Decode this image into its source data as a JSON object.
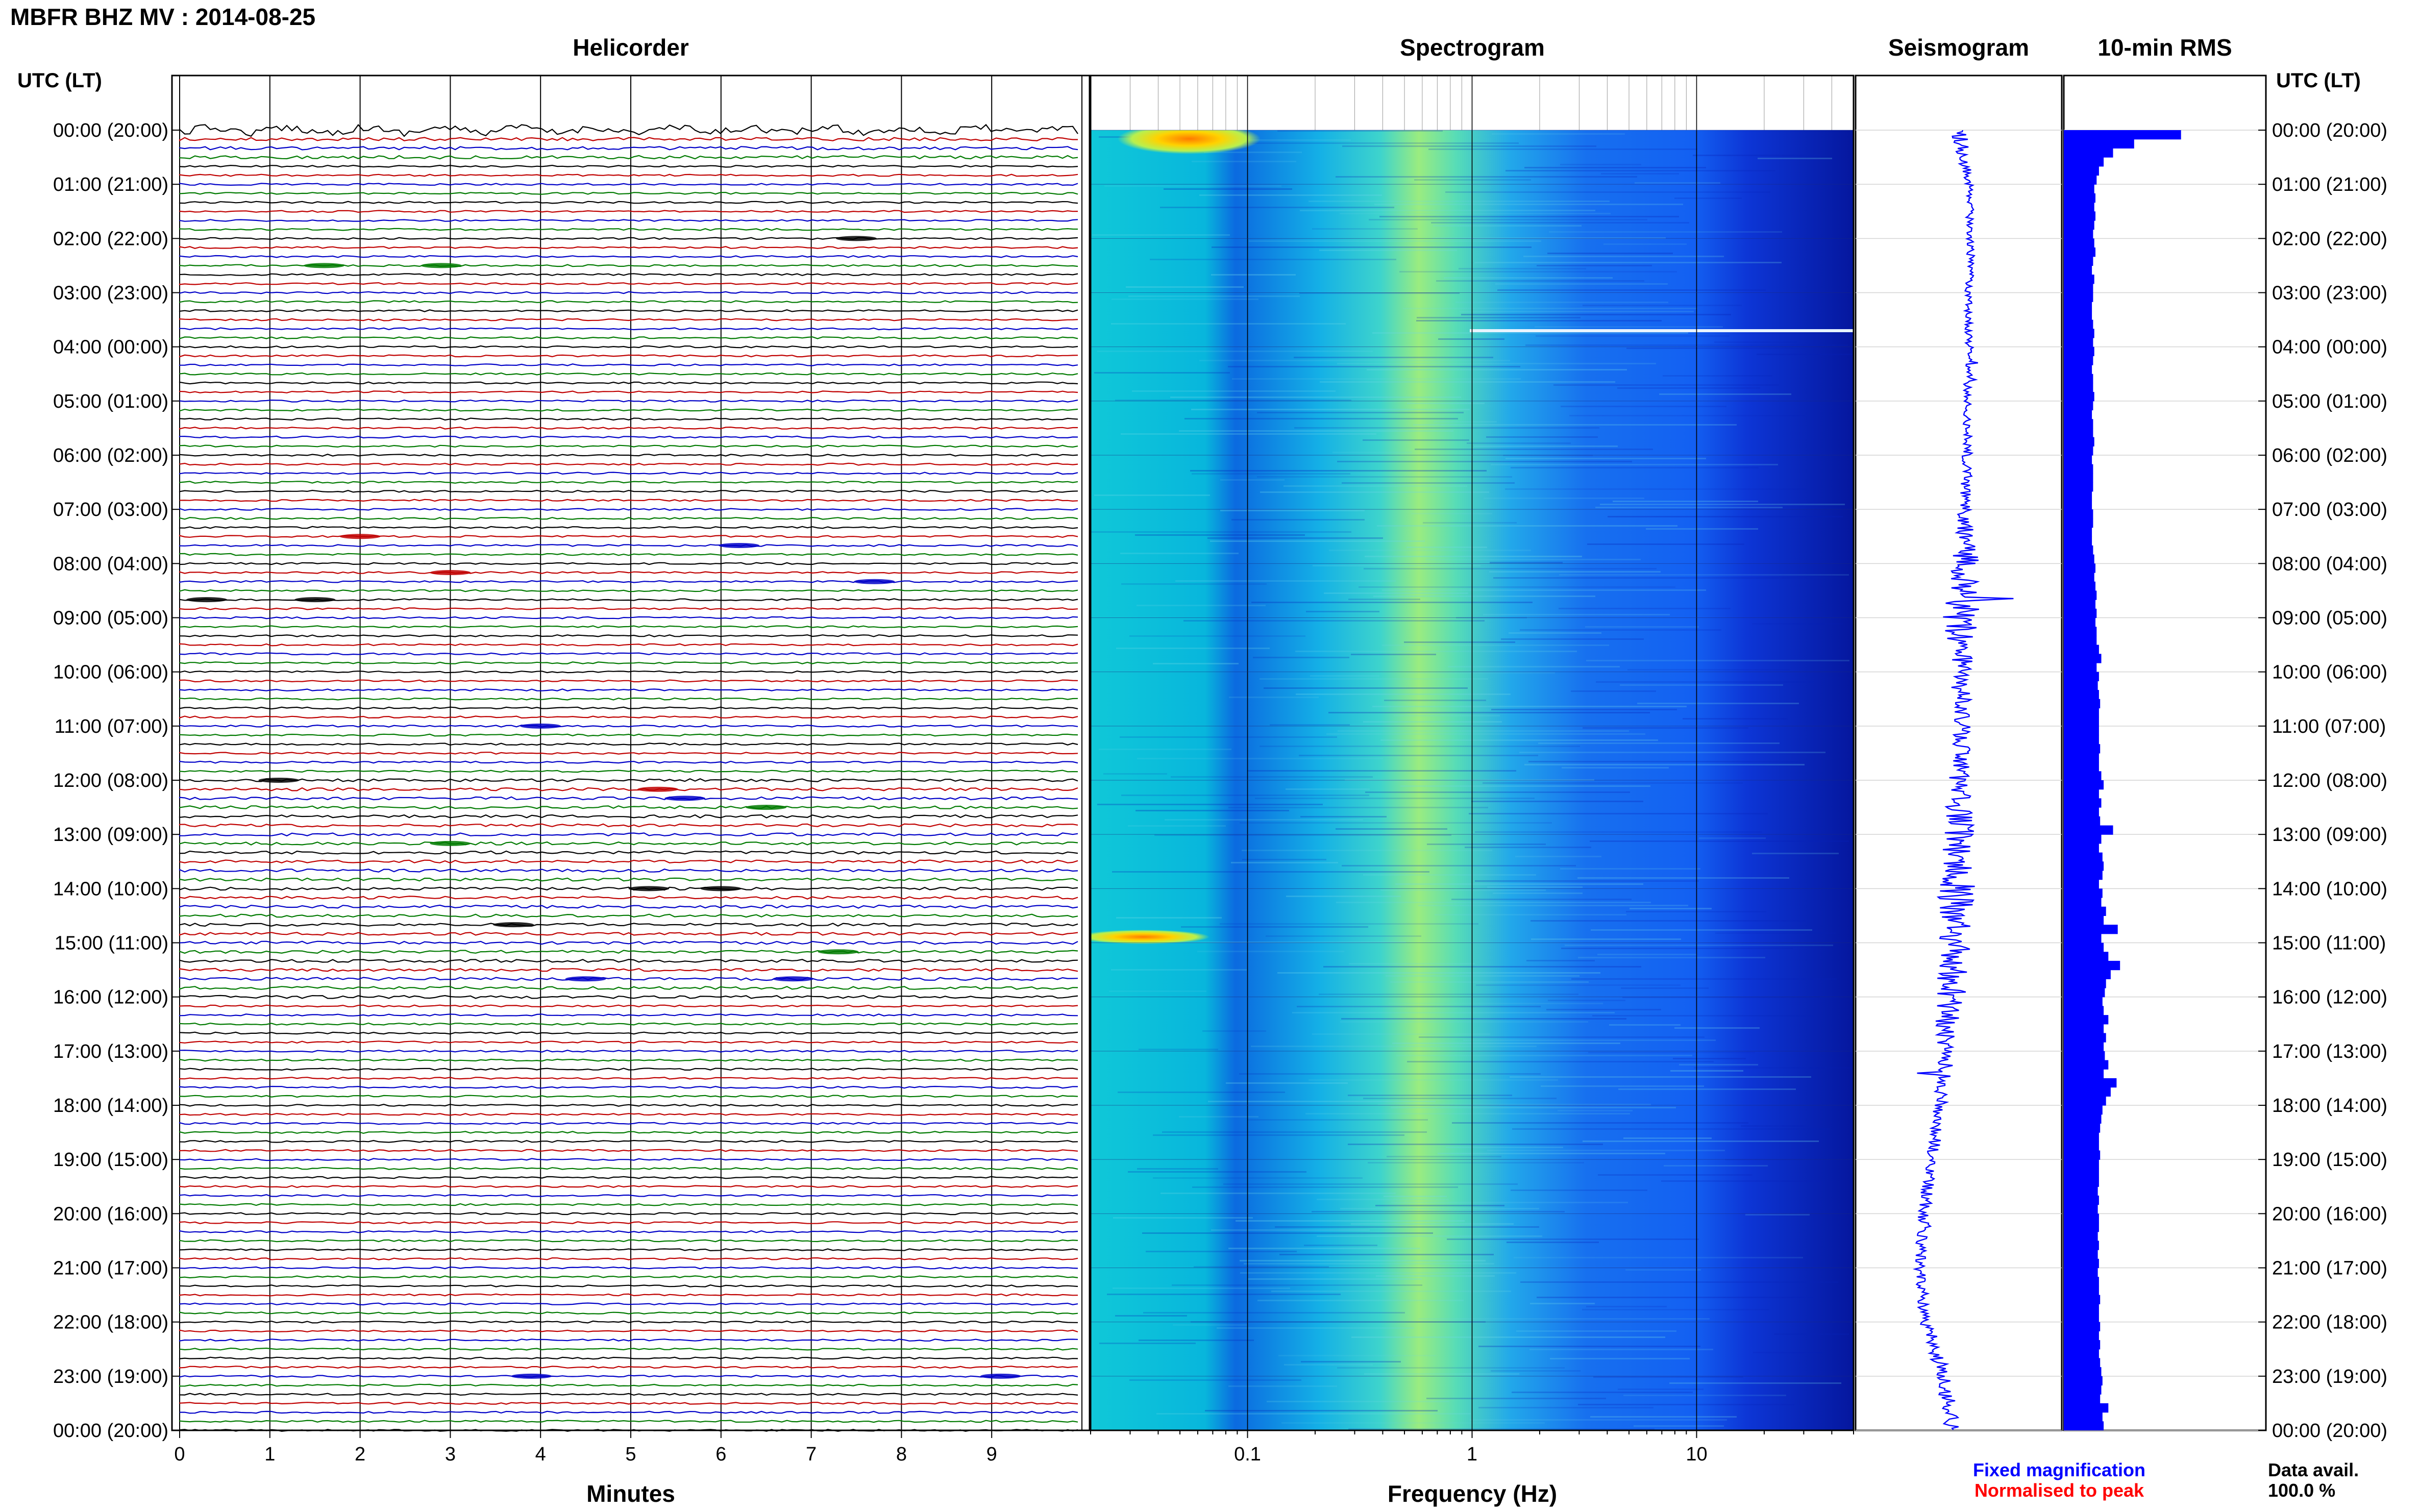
{
  "header": {
    "title": "MBFR BHZ MV : 2014-08-25",
    "helicorder_title": "Helicorder",
    "spectrogram_title": "Spectrogram",
    "seismogram_title": "Seismogram",
    "rms_title": "10-min RMS",
    "left_axis_label": "UTC (LT)",
    "right_axis_label": "UTC (LT)"
  },
  "footer": {
    "minutes_label": "Minutes",
    "frequency_label": "Frequency (Hz)",
    "legend_fixed": "Fixed magnification",
    "legend_normalised": "Normalised to peak",
    "data_avail_label": "Data avail.",
    "data_avail_value": "100.0 %"
  },
  "colors": {
    "helicorder_traces": [
      "#000000",
      "#c00000",
      "#0000c8",
      "#007a00"
    ],
    "fixed_magnification": "#0000ff",
    "normalised_to_peak": "#ff0000",
    "spectrogram_colormap": "jet",
    "seismogram": "#0000ff",
    "rms_bars": "#0000ff"
  },
  "chart_data": {
    "type": "heatmap",
    "time_ticks": [
      "00:00 (20:00)",
      "01:00 (21:00)",
      "02:00 (22:00)",
      "03:00 (23:00)",
      "04:00 (00:00)",
      "05:00 (01:00)",
      "06:00 (02:00)",
      "07:00 (03:00)",
      "08:00 (04:00)",
      "09:00 (05:00)",
      "10:00 (06:00)",
      "11:00 (07:00)",
      "12:00 (08:00)",
      "13:00 (09:00)",
      "14:00 (10:00)",
      "15:00 (11:00)",
      "16:00 (12:00)",
      "17:00 (13:00)",
      "18:00 (14:00)",
      "19:00 (15:00)",
      "20:00 (16:00)",
      "21:00 (17:00)",
      "22:00 (18:00)",
      "23:00 (19:00)",
      "00:00 (20:00)"
    ],
    "helicorder": {
      "x_ticks": [
        "0",
        "1",
        "2",
        "3",
        "4",
        "5",
        "6",
        "7",
        "8",
        "9"
      ],
      "xlim": [
        0,
        10
      ],
      "lines_per_hour": 6,
      "events": [
        {
          "line": 12,
          "minute": 7.5
        },
        {
          "line": 15,
          "minute": 1.6
        },
        {
          "line": 15,
          "minute": 2.9
        },
        {
          "line": 45,
          "minute": 2.0
        },
        {
          "line": 46,
          "minute": 6.2
        },
        {
          "line": 49,
          "minute": 3.0
        },
        {
          "line": 50,
          "minute": 7.7
        },
        {
          "line": 52,
          "minute": 0.3
        },
        {
          "line": 52,
          "minute": 1.5
        },
        {
          "line": 66,
          "minute": 4.0
        },
        {
          "line": 72,
          "minute": 1.1
        },
        {
          "line": 73,
          "minute": 5.3
        },
        {
          "line": 74,
          "minute": 5.6
        },
        {
          "line": 75,
          "minute": 6.5
        },
        {
          "line": 79,
          "minute": 3.0
        },
        {
          "line": 84,
          "minute": 5.2
        },
        {
          "line": 84,
          "minute": 6.0
        },
        {
          "line": 88,
          "minute": 3.7
        },
        {
          "line": 91,
          "minute": 7.3
        },
        {
          "line": 94,
          "minute": 4.5
        },
        {
          "line": 94,
          "minute": 6.8
        },
        {
          "line": 138,
          "minute": 3.9
        },
        {
          "line": 138,
          "minute": 9.1
        }
      ]
    },
    "spectrogram": {
      "x_scale": "log",
      "xlim": [
        0.02,
        50
      ],
      "x_ticks": [
        "0.1",
        "1",
        "10"
      ],
      "x_tick_values": [
        0.1,
        1,
        10
      ],
      "colormap": "jet",
      "notes": [
        "band of peak energy near 0.3-0.5 Hz",
        "strong low-frequency energy at 00:00 and 15:00"
      ]
    },
    "seismogram": {
      "normalised": true,
      "drift": [
        0.5,
        0.55,
        0.56,
        0.55,
        0.55,
        0.54,
        0.54,
        0.53,
        0.53,
        0.52,
        0.52,
        0.52,
        0.5,
        0.5,
        0.49,
        0.48,
        0.46,
        0.44,
        0.41,
        0.37,
        0.33,
        0.31,
        0.34,
        0.43,
        0.47
      ],
      "noise": [
        0.08,
        0.04,
        0.04,
        0.04,
        0.04,
        0.04,
        0.05,
        0.06,
        0.14,
        0.2,
        0.08,
        0.08,
        0.1,
        0.15,
        0.18,
        0.16,
        0.15,
        0.1,
        0.06,
        0.06,
        0.06,
        0.05,
        0.06,
        0.08,
        0.08
      ]
    },
    "rms": {
      "units": "normalised",
      "xlim": [
        0,
        1
      ],
      "values": [
        1.0,
        0.6,
        0.42,
        0.34,
        0.3,
        0.28,
        0.26,
        0.27,
        0.26,
        0.27,
        0.26,
        0.25,
        0.26,
        0.27,
        0.25,
        0.24,
        0.26,
        0.25,
        0.25,
        0.24,
        0.24,
        0.25,
        0.26,
        0.25,
        0.26,
        0.25,
        0.24,
        0.25,
        0.25,
        0.26,
        0.25,
        0.24,
        0.25,
        0.25,
        0.26,
        0.25,
        0.24,
        0.25,
        0.25,
        0.25,
        0.24,
        0.24,
        0.25,
        0.25,
        0.24,
        0.24,
        0.25,
        0.26,
        0.27,
        0.26,
        0.27,
        0.28,
        0.27,
        0.28,
        0.27,
        0.28,
        0.28,
        0.3,
        0.32,
        0.28,
        0.3,
        0.29,
        0.3,
        0.31,
        0.3,
        0.3,
        0.3,
        0.3,
        0.31,
        0.3,
        0.3,
        0.32,
        0.34,
        0.3,
        0.32,
        0.3,
        0.31,
        0.42,
        0.32,
        0.3,
        0.33,
        0.34,
        0.33,
        0.3,
        0.33,
        0.32,
        0.36,
        0.34,
        0.46,
        0.32,
        0.34,
        0.38,
        0.48,
        0.4,
        0.36,
        0.35,
        0.33,
        0.34,
        0.38,
        0.34,
        0.36,
        0.34,
        0.35,
        0.38,
        0.34,
        0.45,
        0.4,
        0.36,
        0.33,
        0.32,
        0.31,
        0.3,
        0.3,
        0.31,
        0.3,
        0.3,
        0.3,
        0.29,
        0.3,
        0.29,
        0.3,
        0.3,
        0.29,
        0.3,
        0.29,
        0.3,
        0.29,
        0.3,
        0.3,
        0.31,
        0.3,
        0.3,
        0.31,
        0.3,
        0.31,
        0.3,
        0.31,
        0.32,
        0.33,
        0.32,
        0.31,
        0.38,
        0.33,
        0.34
      ]
    }
  }
}
